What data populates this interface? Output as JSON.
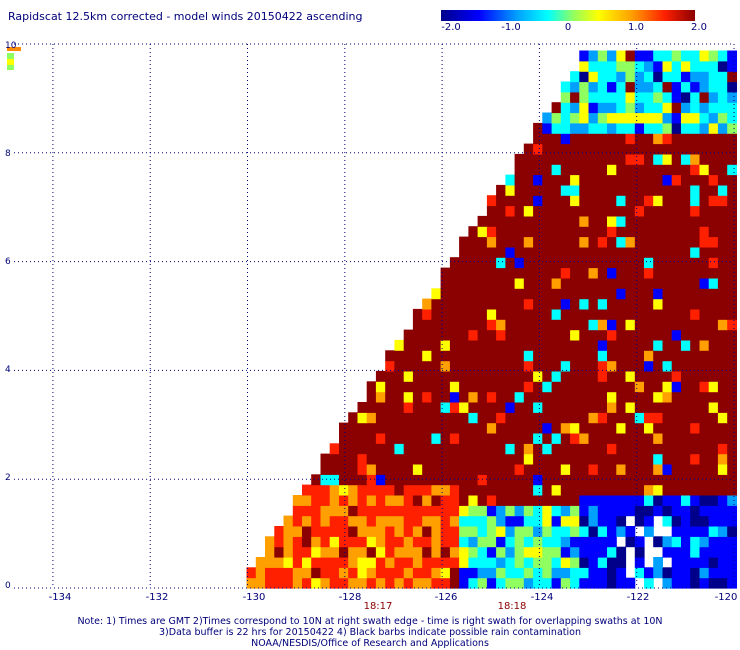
{
  "title": "Rapidscat 12.5km corrected - model winds 20150422 ascending",
  "colorbar": {
    "ticks": [
      "-2.0",
      "-1.0",
      "0",
      "1.0",
      "2.0"
    ],
    "tick_values": [
      -2,
      -1,
      0,
      1,
      2
    ],
    "colors": [
      "#00008b",
      "#0000ff",
      "#00a0ff",
      "#00ffff",
      "#90ff60",
      "#ffff00",
      "#ffa000",
      "#ff2000",
      "#8b0000"
    ]
  },
  "map": {
    "lon_ticks": [
      "-134",
      "-132",
      "-130",
      "-128",
      "-126",
      "-124",
      "-122",
      "-120"
    ],
    "lon_values": [
      -134,
      -132,
      -130,
      -128,
      -126,
      -124,
      -122,
      -120
    ],
    "lat_ticks": [
      "0",
      "2",
      "4",
      "6",
      "8",
      "10"
    ],
    "lat_values": [
      0,
      2,
      4,
      6,
      8,
      10
    ],
    "lon_range": [
      -134.8,
      -120
    ],
    "lat_range": [
      0,
      10
    ],
    "grid": true,
    "times": [
      {
        "label": "18:17",
        "lon": -127.3
      },
      {
        "label": "18:18",
        "lon": -124.8
      }
    ]
  },
  "notes": [
    "Note: 1) Times are GMT 2)Times correspond to 10N at right swath edge - time is right swath for overlapping swaths at 10N",
    "3)Data buffer is 22 hrs for 20150422 4) Black barbs indicate possible rain contamination",
    "NOAA/NESDIS/Office of Research and Applications"
  ]
}
